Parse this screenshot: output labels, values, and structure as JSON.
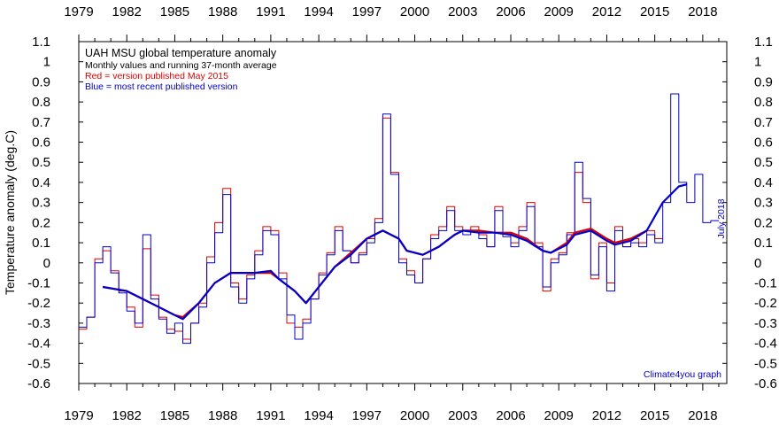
{
  "chart_data": {
    "type": "line",
    "title": "UAH MSU global temperature anomaly",
    "subtitle": "Monthly values and running 37-month average",
    "legend": {
      "red_note": "Red = version published May 2015",
      "blue_note": "Blue = most recent published version",
      "placement": "top-left"
    },
    "ylabel": "Temperature anomaly (deg.C)",
    "ylim": [
      -0.6,
      1.1
    ],
    "xlim": [
      1979.0,
      2019.5
    ],
    "x_ticks": [
      "1979",
      "1982",
      "1985",
      "1988",
      "1991",
      "1994",
      "1997",
      "2000",
      "2003",
      "2006",
      "2009",
      "2012",
      "2015",
      "2018"
    ],
    "y_ticks": [
      "1.1",
      "1",
      "0.9",
      "0.8",
      "0.7",
      "0.6",
      "0.5",
      "0.4",
      "0.3",
      "0.2",
      "0.1",
      "0",
      "-0.1",
      "-0.2",
      "-0.3",
      "-0.4",
      "-0.5",
      "-0.6"
    ],
    "side_note": "July 2018",
    "credit": "Climate4you graph",
    "grid": false,
    "colors": {
      "red": "#dd0000",
      "blue": "#0000cc",
      "axis": "#000000"
    },
    "series": [
      {
        "name": "Red = version published May 2015",
        "color": "#dd0000",
        "x": [
          1979.0,
          1979.5,
          1980.0,
          1980.5,
          1981.0,
          1981.5,
          1982.0,
          1982.5,
          1983.0,
          1983.5,
          1984.0,
          1984.5,
          1985.0,
          1985.5,
          1986.0,
          1986.5,
          1987.0,
          1987.5,
          1988.0,
          1988.5,
          1989.0,
          1989.5,
          1990.0,
          1990.5,
          1991.0,
          1991.5,
          1992.0,
          1992.5,
          1993.0,
          1993.5,
          1994.0,
          1994.5,
          1995.0,
          1995.5,
          1996.0,
          1996.5,
          1997.0,
          1997.5,
          1998.0,
          1998.5,
          1999.0,
          1999.5,
          2000.0,
          2000.5,
          2001.0,
          2001.5,
          2002.0,
          2002.5,
          2003.0,
          2003.5,
          2004.0,
          2004.5,
          2005.0,
          2005.5,
          2006.0,
          2006.5,
          2007.0,
          2007.5,
          2008.0,
          2008.5,
          2009.0,
          2009.5,
          2010.0,
          2010.5,
          2011.0,
          2011.5,
          2012.0,
          2012.5,
          2013.0,
          2013.5,
          2014.0,
          2014.5,
          2015.0
        ],
        "y": [
          -0.33,
          -0.27,
          0.02,
          0.06,
          -0.04,
          -0.14,
          -0.22,
          -0.32,
          0.07,
          -0.16,
          -0.27,
          -0.33,
          -0.34,
          -0.38,
          -0.3,
          -0.2,
          0.03,
          0.2,
          0.37,
          -0.1,
          -0.18,
          -0.06,
          0.06,
          0.18,
          0.16,
          -0.05,
          -0.3,
          -0.32,
          -0.28,
          -0.18,
          -0.05,
          0.05,
          0.18,
          0.06,
          0.0,
          0.05,
          0.12,
          0.22,
          0.72,
          0.45,
          0.02,
          -0.04,
          -0.1,
          0.02,
          0.14,
          0.18,
          0.28,
          0.18,
          0.16,
          0.18,
          0.14,
          0.08,
          0.28,
          0.15,
          0.1,
          0.18,
          0.3,
          0.1,
          -0.14,
          0.02,
          0.05,
          0.15,
          0.45,
          0.3,
          -0.08,
          0.1,
          -0.1,
          0.18,
          0.08,
          0.12,
          0.1,
          0.16,
          0.12
        ]
      },
      {
        "name": "Blue = most recent published version",
        "color": "#0000cc",
        "x": [
          1979.0,
          1979.5,
          1980.0,
          1980.5,
          1981.0,
          1981.5,
          1982.0,
          1982.5,
          1983.0,
          1983.5,
          1984.0,
          1984.5,
          1985.0,
          1985.5,
          1986.0,
          1986.5,
          1987.0,
          1987.5,
          1988.0,
          1988.5,
          1989.0,
          1989.5,
          1990.0,
          1990.5,
          1991.0,
          1991.5,
          1992.0,
          1992.5,
          1993.0,
          1993.5,
          1994.0,
          1994.5,
          1995.0,
          1995.5,
          1996.0,
          1996.5,
          1997.0,
          1997.5,
          1998.0,
          1998.5,
          1999.0,
          1999.5,
          2000.0,
          2000.5,
          2001.0,
          2001.5,
          2002.0,
          2002.5,
          2003.0,
          2003.5,
          2004.0,
          2004.5,
          2005.0,
          2005.5,
          2006.0,
          2006.5,
          2007.0,
          2007.5,
          2008.0,
          2008.5,
          2009.0,
          2009.5,
          2010.0,
          2010.5,
          2011.0,
          2011.5,
          2012.0,
          2012.5,
          2013.0,
          2013.5,
          2014.0,
          2014.5,
          2015.0,
          2015.5,
          2016.0,
          2016.5,
          2017.0,
          2017.5,
          2018.0,
          2018.5
        ],
        "y": [
          -0.32,
          -0.27,
          0.0,
          0.08,
          -0.05,
          -0.15,
          -0.24,
          -0.3,
          0.14,
          -0.18,
          -0.28,
          -0.35,
          -0.3,
          -0.4,
          -0.3,
          -0.22,
          0.0,
          0.15,
          0.34,
          -0.12,
          -0.2,
          -0.08,
          0.04,
          0.16,
          0.14,
          -0.08,
          -0.26,
          -0.38,
          -0.3,
          -0.18,
          -0.06,
          0.04,
          0.16,
          0.06,
          0.0,
          0.04,
          0.1,
          0.2,
          0.74,
          0.44,
          0.0,
          -0.06,
          -0.1,
          0.02,
          0.12,
          0.16,
          0.26,
          0.16,
          0.14,
          0.16,
          0.12,
          0.08,
          0.26,
          0.13,
          0.08,
          0.16,
          0.28,
          0.08,
          -0.12,
          0.0,
          0.04,
          0.14,
          0.5,
          0.32,
          -0.06,
          0.08,
          -0.14,
          0.16,
          0.08,
          0.1,
          0.08,
          0.14,
          0.1,
          0.3,
          0.84,
          0.4,
          0.3,
          0.44,
          0.2,
          0.21
        ]
      },
      {
        "name": "",
        "color": "#dd0000",
        "role": "running-mean",
        "x": [
          1980.5,
          1982.0,
          1983.0,
          1984.0,
          1985.0,
          1985.5,
          1986.5,
          1987.5,
          1988.5,
          1990.0,
          1991.0,
          1991.5,
          1992.5,
          1993.2,
          1994.0,
          1995.0,
          1996.0,
          1997.0,
          1998.0,
          1999.0,
          1999.5,
          2000.5,
          2001.5,
          2002.5,
          2003.0,
          2004.0,
          2005.0,
          2006.0,
          2007.0,
          2008.0,
          2008.5,
          2009.5,
          2010.0,
          2011.0,
          2012.0,
          2012.5,
          2013.5,
          2014.5
        ],
        "y": [
          -0.12,
          -0.14,
          -0.18,
          -0.22,
          -0.26,
          -0.27,
          -0.2,
          -0.1,
          -0.05,
          -0.05,
          -0.05,
          -0.08,
          -0.14,
          -0.2,
          -0.12,
          -0.02,
          0.05,
          0.12,
          0.16,
          0.12,
          0.06,
          0.04,
          0.08,
          0.14,
          0.16,
          0.16,
          0.15,
          0.15,
          0.12,
          0.06,
          0.05,
          0.1,
          0.15,
          0.17,
          0.12,
          0.1,
          0.12,
          0.16
        ]
      },
      {
        "name": "",
        "color": "#0000cc",
        "role": "running-mean",
        "x": [
          1980.5,
          1982.0,
          1983.0,
          1984.0,
          1985.0,
          1985.5,
          1986.5,
          1987.5,
          1988.5,
          1990.0,
          1991.0,
          1991.5,
          1992.5,
          1993.2,
          1994.0,
          1995.0,
          1996.0,
          1997.0,
          1998.0,
          1999.0,
          1999.5,
          2000.5,
          2001.5,
          2002.5,
          2003.0,
          2004.0,
          2005.0,
          2006.0,
          2007.0,
          2008.0,
          2008.5,
          2009.5,
          2010.0,
          2011.0,
          2012.0,
          2012.5,
          2013.5,
          2014.5,
          2015.5,
          2016.5,
          2017.0
        ],
        "y": [
          -0.12,
          -0.14,
          -0.18,
          -0.22,
          -0.26,
          -0.28,
          -0.2,
          -0.1,
          -0.05,
          -0.05,
          -0.04,
          -0.08,
          -0.14,
          -0.2,
          -0.12,
          -0.02,
          0.04,
          0.12,
          0.16,
          0.12,
          0.06,
          0.04,
          0.08,
          0.14,
          0.16,
          0.15,
          0.15,
          0.14,
          0.11,
          0.06,
          0.05,
          0.09,
          0.14,
          0.16,
          0.11,
          0.09,
          0.11,
          0.16,
          0.3,
          0.38,
          0.39
        ]
      }
    ]
  }
}
